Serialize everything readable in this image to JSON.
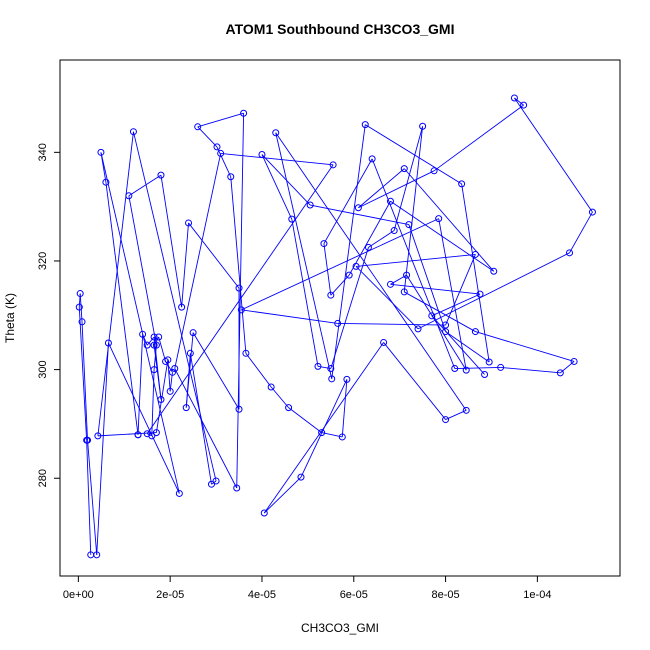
{
  "chart_data": {
    "type": "line",
    "title": "ATOM1 Southbound CH3CO3_GMI",
    "xlabel": "CH3CO3_GMI",
    "ylabel": "Theta (K)",
    "xlim": [
      -4e-06,
      0.000118
    ],
    "ylim": [
      262,
      357
    ],
    "xticks": [
      0,
      2e-05,
      4e-05,
      6e-05,
      8e-05,
      0.0001
    ],
    "xtick_labels": [
      "0e+00",
      "2e-05",
      "4e-05",
      "6e-05",
      "8e-05",
      "1e-04"
    ],
    "yticks": [
      280,
      300,
      320,
      340
    ],
    "ytick_labels": [
      "280",
      "300",
      "320",
      "340"
    ],
    "grid": false,
    "series": [
      {
        "color": "#0000ff",
        "marker": "open-circle",
        "x": [
          2.7e-06,
          1.8e-06,
          2e-07,
          4e-07,
          8e-07,
          2e-06,
          4e-06,
          6.55e-06,
          2.2e-05,
          4.92e-06,
          6e-06,
          1.3e-05,
          1.3e-05,
          1.4e-05,
          1.5e-05,
          1.65e-05,
          1.8e-05,
          1.65e-05,
          1.75e-05,
          1.9e-05,
          2.05e-05,
          2e-05,
          1.95e-05,
          1.7e-05,
          4.25e-06,
          1.2e-05,
          3e-05,
          2.9e-05,
          2.44e-05,
          2.35e-05,
          2.5e-05,
          3.5e-05,
          3.5e-05,
          2.4e-05,
          2.25e-05,
          1.8e-05,
          1.1e-05,
          1.7e-05,
          1.65e-05,
          1.6e-05,
          1.5e-05,
          5.55e-05,
          3.1e-05,
          2.1e-05,
          3.45e-05,
          3.6e-05,
          2.6e-05,
          3.02e-05,
          3.32e-05,
          3.65e-05,
          4.2e-05,
          4.58e-05,
          5.3e-05,
          5.75e-05,
          5.85e-05,
          4.85e-05,
          4.05e-05,
          6.65e-05,
          8e-05,
          8.45e-05,
          4.3e-05,
          5.52e-05,
          6.25e-05,
          8.35e-05,
          8.95e-05,
          8e-05,
          7.2e-05,
          5.05e-05,
          4e-05,
          4.65e-05,
          5.22e-05,
          5.5e-05,
          6.32e-05,
          6.88e-05,
          7.5e-05,
          7.1e-05,
          8.65e-05,
          0.000108,
          0.000105,
          9.2e-05,
          8.2e-05,
          6.4e-05,
          5.35e-05,
          5.5e-05,
          5.9e-05,
          6.8e-05,
          9.05e-05,
          7.1e-05,
          6.1e-05,
          7.75e-05,
          9.7e-05,
          9.5e-05,
          0.000112,
          0.000107,
          7.4e-05,
          6.05e-05,
          8.65e-05,
          8e-05,
          5.65e-05,
          3.55e-05,
          7.85e-05,
          8.45e-05,
          7.15e-05,
          6.8e-05,
          8.75e-05,
          7.7e-05,
          8.85e-05
        ],
        "y": [
          265.9,
          287,
          311.5,
          314,
          308.8,
          287,
          265.9,
          304.9,
          277.2,
          340,
          334.5,
          288,
          288,
          306.5,
          304.5,
          306,
          294.5,
          304.5,
          306,
          301.5,
          299.5,
          296,
          301.8,
          288.4,
          287.8,
          343.8,
          279.5,
          278.9,
          303,
          293,
          306.8,
          292.7,
          315,
          327,
          311.5,
          335.8,
          332,
          304.5,
          300,
          287.8,
          288.2,
          337.7,
          339.8,
          300.2,
          278.2,
          347.2,
          344.7,
          341,
          335.5,
          303,
          296.8,
          293,
          288.4,
          287.6,
          298.2,
          280.2,
          273.6,
          305,
          290.8,
          292.5,
          343.6,
          298.3,
          345.1,
          334.2,
          301.4,
          307,
          326.7,
          330.3,
          339.6,
          327.7,
          300.6,
          300.2,
          322.5,
          325.6,
          344.8,
          314.3,
          307,
          301.5,
          299.4,
          300.4,
          300.2,
          338.8,
          323.2,
          313.7,
          317.4,
          331,
          318.1,
          337,
          329.8,
          336.6,
          348.7,
          350,
          329,
          321.5,
          307.5,
          319,
          321.2,
          308.2,
          308.5,
          311,
          327.8,
          299.9,
          317.4,
          315.7,
          313.9,
          309.9,
          299.1
        ]
      }
    ]
  }
}
